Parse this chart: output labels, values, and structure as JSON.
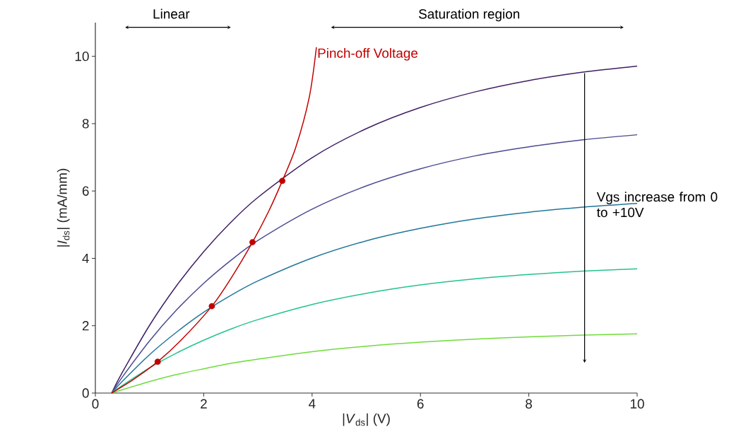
{
  "chart_data": {
    "type": "line",
    "xlabel": "|*V*$_{ds}$| (V)",
    "ylabel": "|*I*$_{ds}$| (mA/mm)",
    "xlim": [
      0,
      10
    ],
    "ylim": [
      0,
      11
    ],
    "xticks": [
      0,
      2,
      4,
      6,
      8,
      10
    ],
    "yticks": [
      0,
      2,
      4,
      6,
      8,
      10
    ],
    "grid": false,
    "marker": "none",
    "line_style": "solid",
    "annotations": [
      "Linear",
      "Saturation region",
      "Vgs increase from 0 to +10V"
    ],
    "series": [
      {
        "color": "#3f1f63",
        "x": [
          0.3,
          0.5,
          1,
          1.5,
          2,
          2.5,
          3,
          4,
          5,
          6,
          7,
          8,
          9,
          10
        ],
        "values": [
          0,
          0.62,
          2.01,
          3.19,
          4.2,
          5.07,
          5.81,
          6.99,
          7.85,
          8.48,
          8.94,
          9.28,
          9.53,
          9.71
        ]
      },
      {
        "color": "#4b4a92",
        "x": [
          0.3,
          0.5,
          1,
          1.5,
          2,
          2.5,
          3,
          4,
          5,
          6,
          7,
          8,
          9,
          10
        ],
        "values": [
          0,
          0.48,
          1.55,
          2.47,
          3.26,
          3.94,
          4.53,
          5.46,
          6.15,
          6.66,
          7.04,
          7.31,
          7.52,
          7.67
        ]
      },
      {
        "color": "#21769a",
        "x": [
          0.3,
          0.5,
          1,
          1.5,
          2,
          2.5,
          3,
          4,
          5,
          6,
          7,
          8,
          9,
          10
        ],
        "values": [
          0,
          0.35,
          1.14,
          1.81,
          2.4,
          2.9,
          3.33,
          4.01,
          4.52,
          4.89,
          5.17,
          5.37,
          5.52,
          5.63
        ]
      },
      {
        "color": "#25c38c",
        "x": [
          0.3,
          0.5,
          1,
          1.5,
          2,
          2.5,
          3,
          4,
          5,
          6,
          7,
          8,
          9,
          10
        ],
        "values": [
          0,
          0.23,
          0.75,
          1.19,
          1.57,
          1.9,
          2.18,
          2.63,
          2.96,
          3.21,
          3.39,
          3.52,
          3.62,
          3.69
        ]
      },
      {
        "color": "#6fdc3c",
        "x": [
          0.3,
          0.5,
          1,
          1.5,
          2,
          2.5,
          3,
          4,
          5,
          6,
          7,
          8,
          9,
          10
        ],
        "values": [
          0,
          0.1,
          0.34,
          0.55,
          0.72,
          0.88,
          1.01,
          1.23,
          1.39,
          1.51,
          1.6,
          1.67,
          1.72,
          1.76
        ]
      },
      {
        "name": "Pinch-off Voltage",
        "color": "#c00000",
        "x": [
          0.3,
          0.7,
          1.15,
          1.6,
          2.15,
          2.5,
          2.9,
          3.2,
          3.45,
          3.7,
          3.95,
          4.08
        ],
        "values": [
          0,
          0.4,
          0.93,
          1.6,
          2.58,
          3.4,
          4.48,
          5.4,
          6.3,
          7.3,
          8.8,
          10.27
        ]
      },
      {
        "type": "scatter",
        "marker": "circle",
        "color": "#c00000",
        "x": [
          1.15,
          2.15,
          2.9,
          3.45
        ],
        "values": [
          0.93,
          2.58,
          4.48,
          6.3
        ]
      }
    ]
  }
}
